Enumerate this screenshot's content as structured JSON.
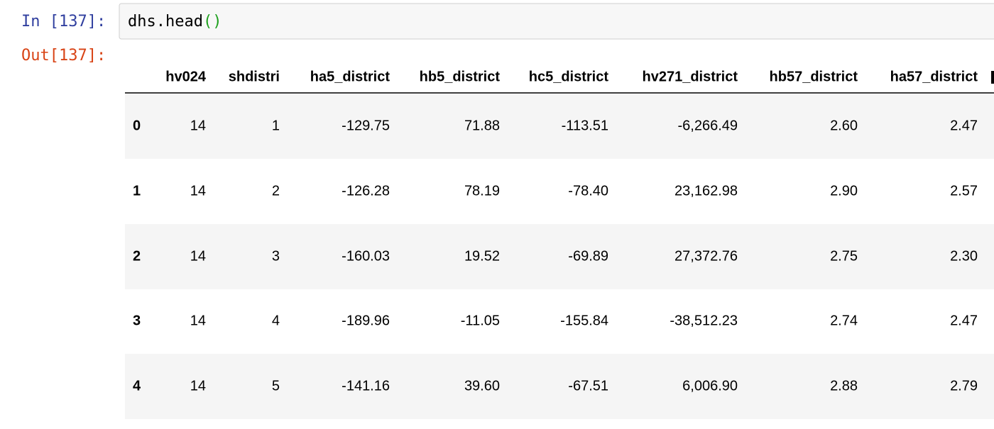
{
  "cell": {
    "input_prompt": "In [137]:",
    "code_tokens": [
      "dhs.head",
      "()"
    ],
    "output_prompt": "Out[137]:"
  },
  "table": {
    "columns": [
      "hv024",
      "shdistri",
      "ha5_district",
      "hb5_district",
      "hc5_district",
      "hv271_district",
      "hb57_district",
      "ha57_district"
    ],
    "rows": [
      [
        "0",
        "14",
        "1",
        "-129.75",
        "71.88",
        "-113.51",
        "-6,266.49",
        "2.60",
        "2.47"
      ],
      [
        "1",
        "14",
        "2",
        "-126.28",
        "78.19",
        "-78.40",
        "23,162.98",
        "2.90",
        "2.57"
      ],
      [
        "2",
        "14",
        "3",
        "-160.03",
        "19.52",
        "-69.89",
        "27,372.76",
        "2.75",
        "2.30"
      ],
      [
        "3",
        "14",
        "4",
        "-189.96",
        "-11.05",
        "-155.84",
        "-38,512.23",
        "2.74",
        "2.47"
      ],
      [
        "4",
        "14",
        "5",
        "-141.16",
        "39.60",
        "-67.51",
        "6,006.90",
        "2.88",
        "2.79"
      ]
    ]
  }
}
